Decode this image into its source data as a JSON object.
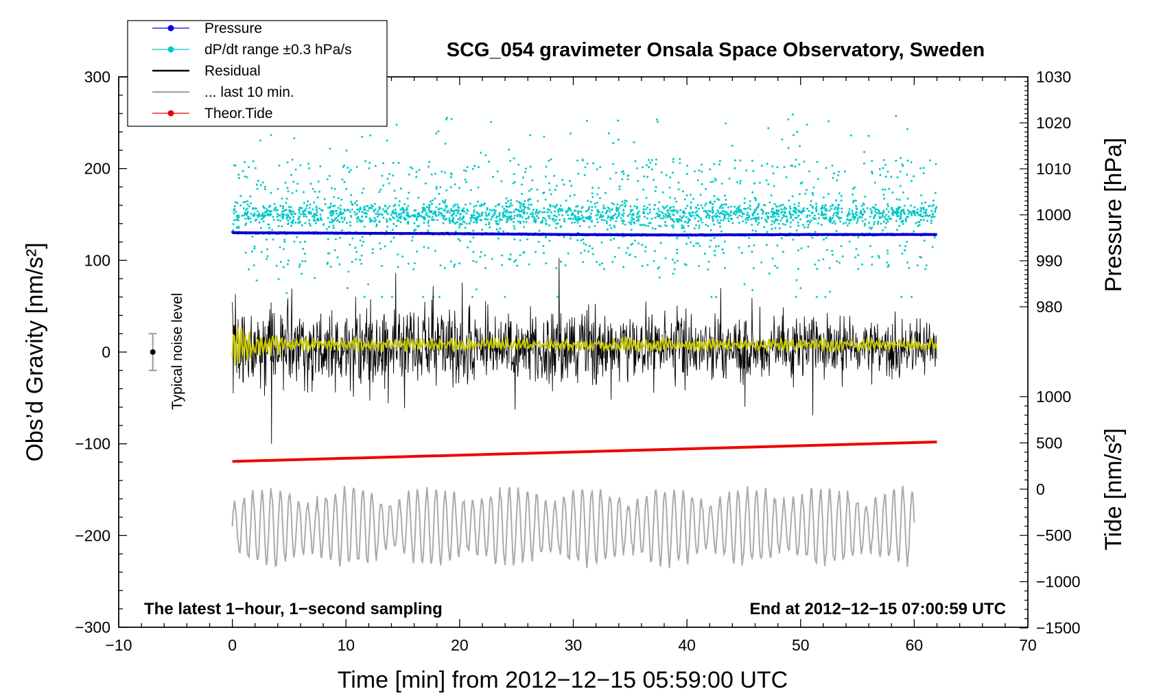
{
  "chart_data": {
    "type": "line",
    "title": "SCG_054 gravimeter Onsala Space Observatory, Sweden",
    "xlabel": "Time [min] from 2012−12−15 05:59:00 UTC",
    "ylabel": "Obs’d Gravity [nm/s²]",
    "y2label_pressure": "Pressure [hPa]",
    "y2label_tide": "Tide [nm/s²]",
    "xlim": [
      -10,
      70
    ],
    "ylim": [
      -300,
      300
    ],
    "pressure_axis_range": [
      980,
      1030
    ],
    "tide_axis_range": [
      -1500,
      1000
    ],
    "x_ticks": [
      "−10",
      "0",
      "10",
      "20",
      "30",
      "40",
      "50",
      "60",
      "70"
    ],
    "y_ticks": [
      "−300",
      "−200",
      "−100",
      "0",
      "100",
      "200",
      "300"
    ],
    "pressure_ticks": [
      "980",
      "990",
      "1000",
      "1010",
      "1020",
      "1030"
    ],
    "tide_ticks": [
      "−1500",
      "−1000",
      "−500",
      "0",
      "500",
      "1000"
    ],
    "note_left": "The latest 1−hour, 1−second sampling",
    "note_right": "End at 2012−12−15 07:00:59 UTC",
    "noise_label": "Typical noise level",
    "noise_level": {
      "x": -7,
      "center": 0,
      "half_range": 20
    },
    "legend": [
      {
        "label": "Pressure",
        "color": "#0000ee",
        "marker": true
      },
      {
        "label": "dP/dt range ±0.3 hPa/s",
        "color": "#00c8c8",
        "marker": true
      },
      {
        "label": "Residual",
        "color": "#000000",
        "marker": false
      },
      {
        "label": "... last 10 min.",
        "color": "#aaaaaa",
        "marker": false
      },
      {
        "label": "Theor.Tide",
        "color": "#ee0000",
        "marker": true
      }
    ],
    "series": [
      {
        "name": "Pressure",
        "axis": "pressure",
        "x": [
          0,
          10,
          20,
          30,
          40,
          50,
          62
        ],
        "values": [
          996.1,
          996.0,
          995.9,
          995.7,
          995.6,
          995.7,
          995.7
        ]
      },
      {
        "name": "Theor.Tide",
        "axis": "tide",
        "x": [
          0,
          62
        ],
        "values": [
          300,
          510
        ]
      },
      {
        "name": "Residual",
        "axis": "gravity",
        "x_range": [
          0,
          62
        ],
        "center": 5,
        "amplitude_start": 75,
        "amplitude_end": 50
      },
      {
        "name": "Residual smoothed",
        "axis": "gravity",
        "x_range": [
          0,
          62
        ],
        "center": 8,
        "amplitude": 8
      },
      {
        "name": "dP/dt range ±0.3 hPa/s",
        "axis": "gravity",
        "x_range": [
          0,
          62
        ],
        "center": 150,
        "spread": 25
      },
      {
        "name": "... last 10 min.",
        "axis": "gravity",
        "x_range": [
          0,
          60
        ],
        "center": -190,
        "amplitude": 40
      }
    ]
  }
}
